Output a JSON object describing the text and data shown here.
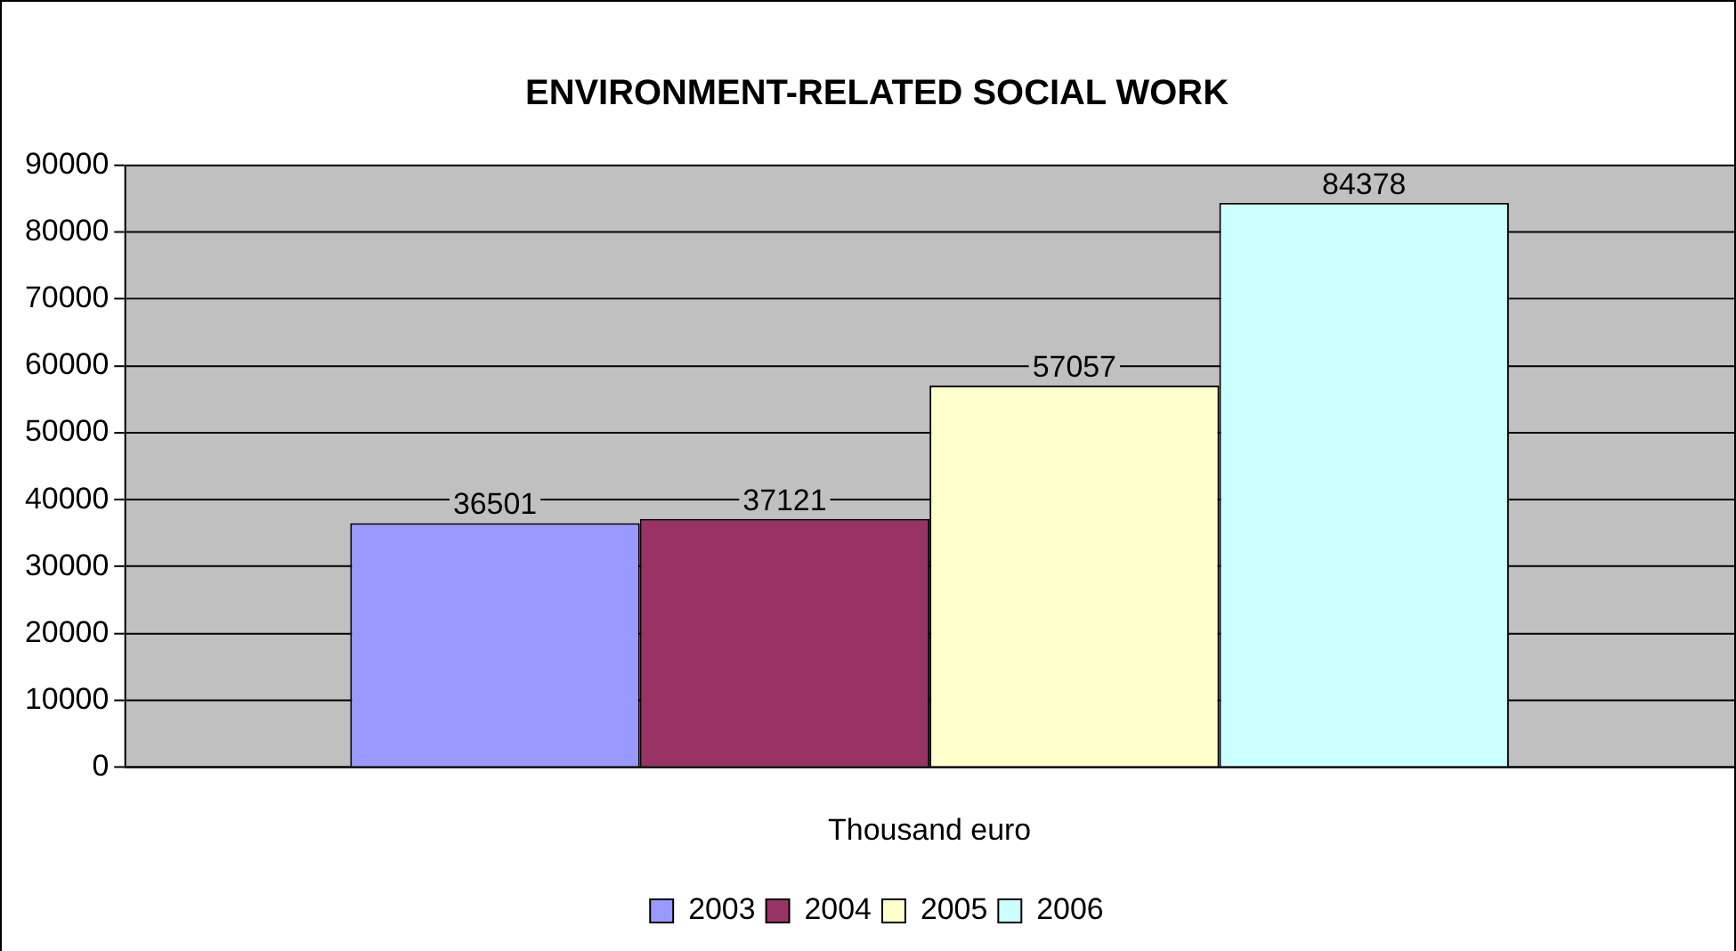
{
  "chart_data": {
    "type": "bar",
    "title": "ENVIRONMENT-RELATED SOCIAL WORK",
    "categories": [
      "Thousand euro"
    ],
    "series": [
      {
        "name": "2003",
        "color": "#9999ff",
        "values": [
          36501
        ]
      },
      {
        "name": "2004",
        "color": "#993366",
        "values": [
          37121
        ]
      },
      {
        "name": "2005",
        "color": "#ffffcc",
        "values": [
          57057
        ]
      },
      {
        "name": "2006",
        "color": "#ccffff",
        "values": [
          84378
        ]
      }
    ],
    "ylim": [
      0,
      90000
    ],
    "yticks": [
      0,
      10000,
      20000,
      30000,
      40000,
      50000,
      60000,
      70000,
      80000,
      90000
    ],
    "grid": "y",
    "legend": "bottom",
    "data_labels": true
  }
}
